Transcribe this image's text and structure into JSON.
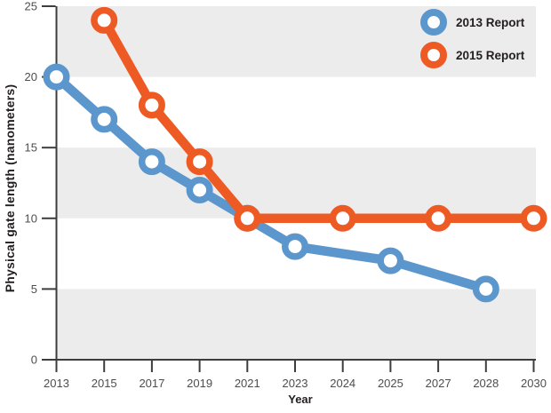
{
  "colors": {
    "band": "#ececec",
    "axis": "#3d3d3d",
    "tick_label": "#4d4d4d",
    "text": "#231f20",
    "series_2013": "#5b96cd",
    "series_2015": "#ee5a23"
  },
  "legend": {
    "items": [
      {
        "label": "2013 Report",
        "color": "#5b96cd"
      },
      {
        "label": "2015 Report",
        "color": "#ee5a23"
      }
    ]
  },
  "chart_data": {
    "type": "line",
    "title": "",
    "xlabel": "Year",
    "ylabel": "Physical gate length (nanometers)",
    "x_categories": [
      "2013",
      "2015",
      "2017",
      "2019",
      "2021",
      "2023",
      "2024",
      "2025",
      "2027",
      "2028",
      "2030"
    ],
    "y_ticks": [
      0,
      5,
      10,
      15,
      20,
      25
    ],
    "ylim": [
      0,
      25
    ],
    "gray_bands": [
      [
        20,
        25
      ],
      [
        10,
        15
      ],
      [
        0,
        5
      ]
    ],
    "grid": "banded",
    "legend_position": "top-right",
    "marker_style": "open-circle",
    "series": [
      {
        "name": "2013 Report",
        "color": "#5b96cd",
        "points": [
          [
            "2013",
            20
          ],
          [
            "2015",
            17
          ],
          [
            "2017",
            14
          ],
          [
            "2019",
            12
          ],
          [
            "2021",
            10
          ],
          [
            "2023",
            8
          ],
          [
            "2025",
            7
          ],
          [
            "2028",
            5
          ]
        ]
      },
      {
        "name": "2015 Report",
        "color": "#ee5a23",
        "points": [
          [
            "2015",
            24
          ],
          [
            "2017",
            18
          ],
          [
            "2019",
            14
          ],
          [
            "2021",
            10
          ],
          [
            "2024",
            10
          ],
          [
            "2027",
            10
          ],
          [
            "2030",
            10
          ]
        ]
      }
    ]
  }
}
